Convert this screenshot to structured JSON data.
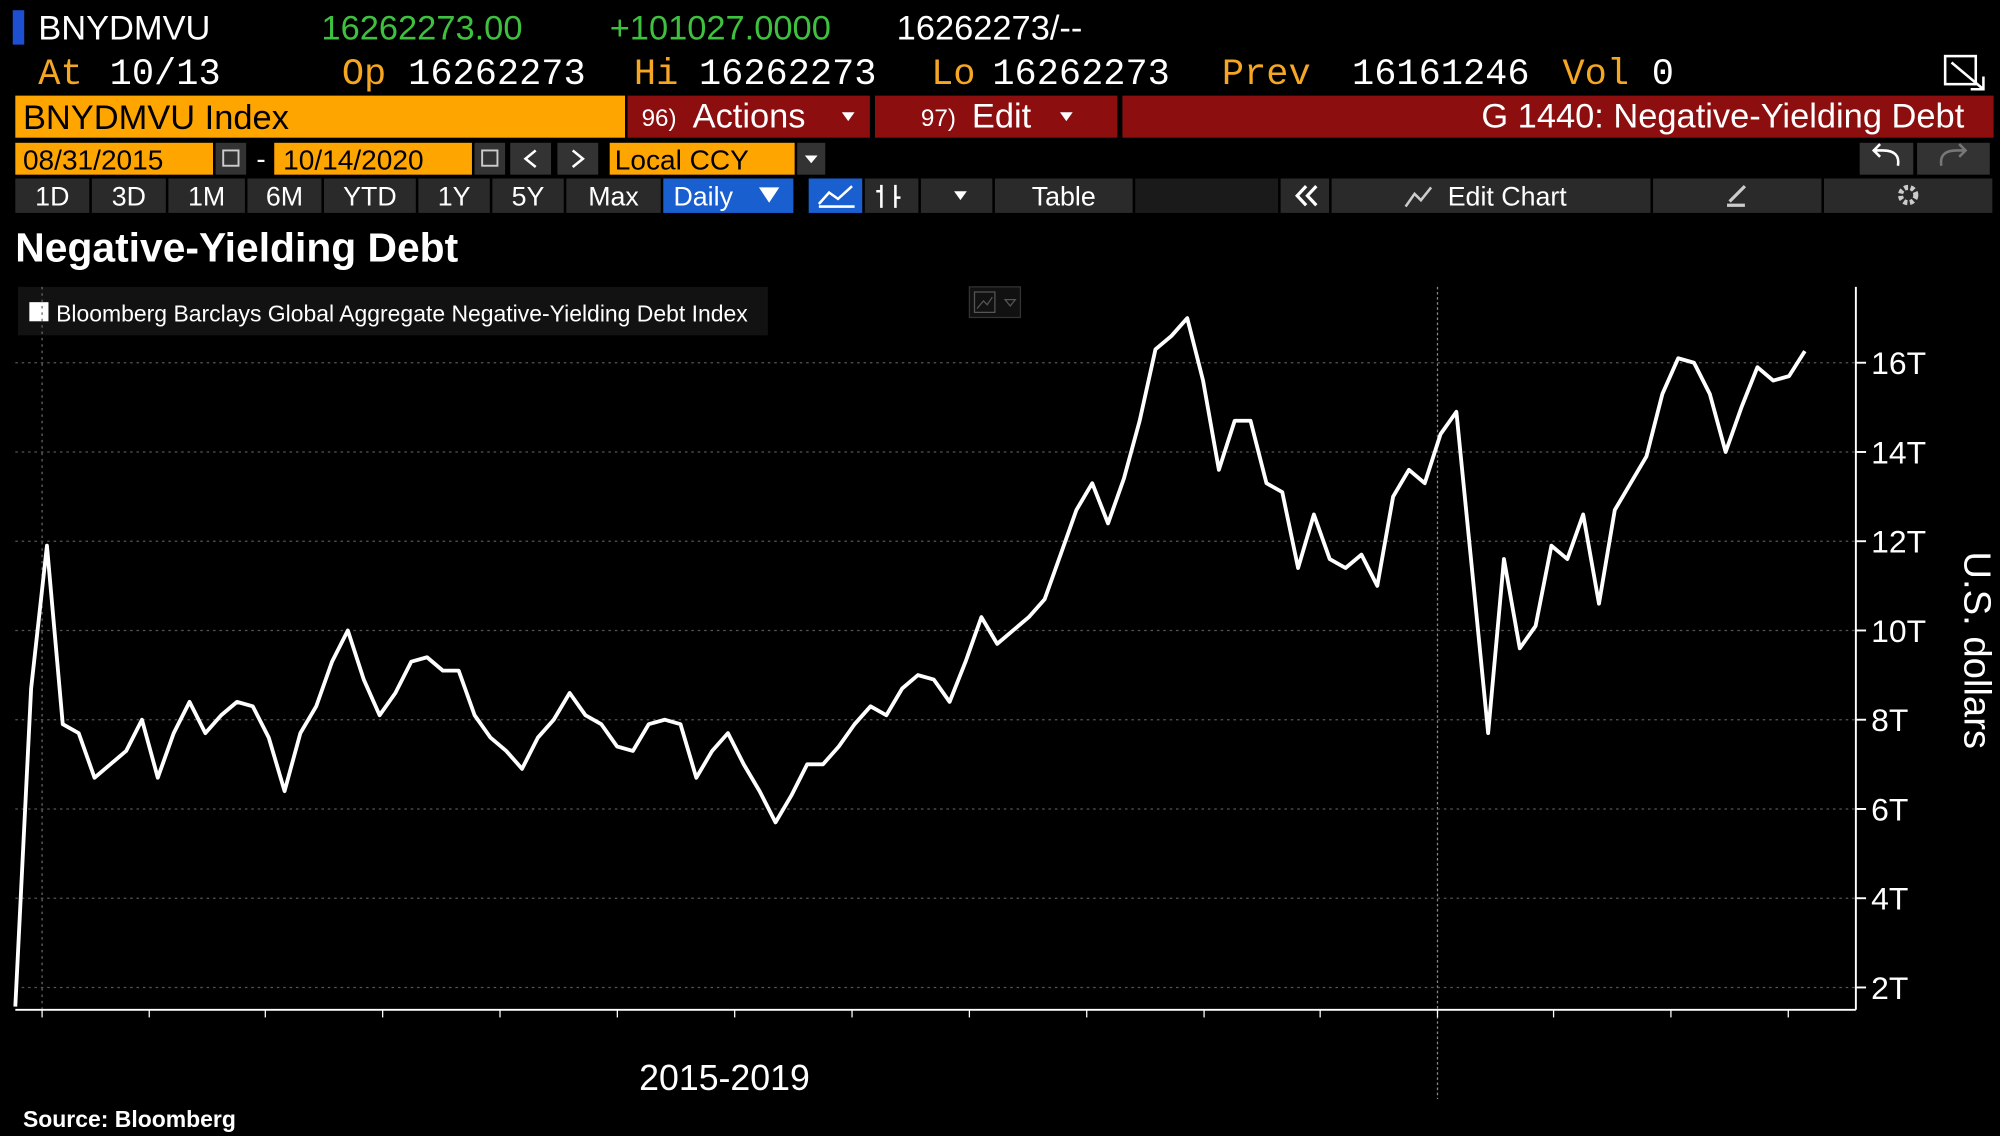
{
  "header": {
    "ticker": "BNYDMVU",
    "last": "16262273.00",
    "change": "+101027.0000",
    "bid_ask": "16262273/--",
    "at_label": "At",
    "at": "10/13",
    "open_label": "Op",
    "open": "16262273",
    "high_label": "Hi",
    "high": "16262273",
    "low_label": "Lo",
    "low": "16262273",
    "prev_label": "Prev",
    "prev": "16161246",
    "vol_label": "Vol",
    "vol": "0"
  },
  "toolbar": {
    "security": "BNYDMVU Index",
    "actions_num": "96)",
    "actions": "Actions",
    "edit_num": "97)",
    "edit": "Edit",
    "function": "G 1440: Negative-Yielding Debt",
    "start_date": "08/31/2015",
    "date_separator": "-",
    "end_date": "10/14/2020",
    "currency": "Local CCY",
    "periods": [
      "1D",
      "3D",
      "1M",
      "6M",
      "YTD",
      "1Y",
      "5Y",
      "Max"
    ],
    "frequency": "Daily",
    "table": "Table",
    "edit_chart": "Edit Chart"
  },
  "chart_data": {
    "type": "line",
    "title": "Negative-Yielding Debt",
    "ylabel": "U.S. dollars",
    "xlabel": "2015-2019",
    "source": "Source: Bloomberg",
    "ylim": [
      1.5,
      17.7
    ],
    "yticks": [
      {
        "value": 2,
        "label": "2T"
      },
      {
        "value": 4,
        "label": "4T"
      },
      {
        "value": 6,
        "label": "6T"
      },
      {
        "value": 8,
        "label": "8T"
      },
      {
        "value": 10,
        "label": "10T"
      },
      {
        "value": 12,
        "label": "12T"
      },
      {
        "value": 14,
        "label": "14T"
      },
      {
        "value": 16,
        "label": "16T"
      }
    ],
    "grid": true,
    "series": [
      {
        "name": "Bloomberg Barclays Global Aggregate Negative-Yielding Debt Index",
        "color": "#ffffff",
        "values": [
          1.57,
          8.7,
          11.9,
          7.9,
          7.7,
          6.7,
          7.0,
          7.3,
          8.0,
          6.7,
          7.7,
          8.4,
          7.7,
          8.1,
          8.4,
          8.3,
          7.6,
          6.4,
          7.7,
          8.3,
          9.3,
          10.0,
          8.9,
          8.1,
          8.6,
          9.3,
          9.4,
          9.1,
          9.1,
          8.1,
          7.6,
          7.3,
          6.9,
          7.6,
          8.0,
          8.6,
          8.1,
          7.9,
          7.4,
          7.3,
          7.9,
          8.0,
          7.9,
          6.7,
          7.3,
          7.7,
          7.0,
          6.4,
          5.7,
          6.3,
          7.0,
          7.0,
          7.4,
          7.9,
          8.3,
          8.1,
          8.7,
          9.0,
          8.9,
          8.4,
          9.3,
          10.3,
          9.7,
          10.0,
          10.3,
          10.7,
          11.7,
          12.7,
          13.3,
          12.4,
          13.4,
          14.7,
          16.3,
          16.6,
          17.0,
          15.6,
          13.6,
          14.7,
          14.7,
          13.3,
          13.1,
          11.4,
          12.6,
          11.6,
          11.4,
          11.7,
          11.0,
          13.0,
          13.6,
          13.3,
          14.4,
          14.9,
          11.3,
          7.7,
          11.6,
          9.6,
          10.1,
          11.9,
          11.6,
          12.6,
          10.6,
          12.7,
          13.3,
          13.9,
          15.3,
          16.1,
          16.0,
          15.3,
          14.0,
          15.0,
          15.9,
          15.6,
          15.7,
          16.26
        ]
      }
    ]
  }
}
